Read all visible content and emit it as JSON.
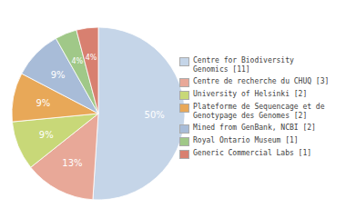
{
  "chart_data": {
    "type": "pie",
    "categories": [
      "Centre for Biodiversity\nGenomics [11]",
      "Centre de recherche du CHUQ [3]",
      "University of Helsinki [2]",
      "Plateforme de Sequencage et de\nGenotypage des Genomes [2]",
      "Mined from GenBank, NCBI [2]",
      "Royal Ontario Museum [1]",
      "Generic Commercial Labs [1]"
    ],
    "values": [
      50,
      13,
      9,
      9,
      9,
      4,
      4
    ],
    "value_labels": [
      "50%",
      "13%",
      "9%",
      "9%",
      "9%",
      "4%",
      "4%"
    ],
    "colors": [
      "#c5d5e8",
      "#e8a898",
      "#c8d878",
      "#e8a858",
      "#a8bcd8",
      "#a0c888",
      "#d88070"
    ],
    "data_labels": true,
    "legend": "right"
  }
}
